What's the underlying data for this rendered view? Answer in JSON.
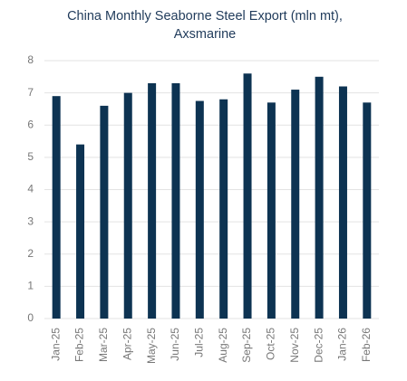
{
  "chart_data": {
    "type": "bar",
    "title": [
      "China Monthly Seaborne Steel Export (mln mt),",
      "Axsmarine"
    ],
    "categories": [
      "Jan-25",
      "Feb-25",
      "Mar-25",
      "Apr-25",
      "May-25",
      "Jun-25",
      "Jul-25",
      "Aug-25",
      "Sep-25",
      "Oct-25",
      "Nov-25",
      "Dec-25",
      "Jan-26",
      "Feb-26"
    ],
    "values": [
      6.9,
      5.4,
      6.6,
      7.0,
      7.3,
      7.3,
      6.75,
      6.8,
      7.6,
      6.7,
      7.1,
      7.5,
      7.2,
      6.7
    ],
    "color": "#0d3352",
    "ylim": [
      0,
      8
    ],
    "yticks": [
      0,
      1,
      2,
      3,
      4,
      5,
      6,
      7,
      8
    ],
    "grid": true
  }
}
